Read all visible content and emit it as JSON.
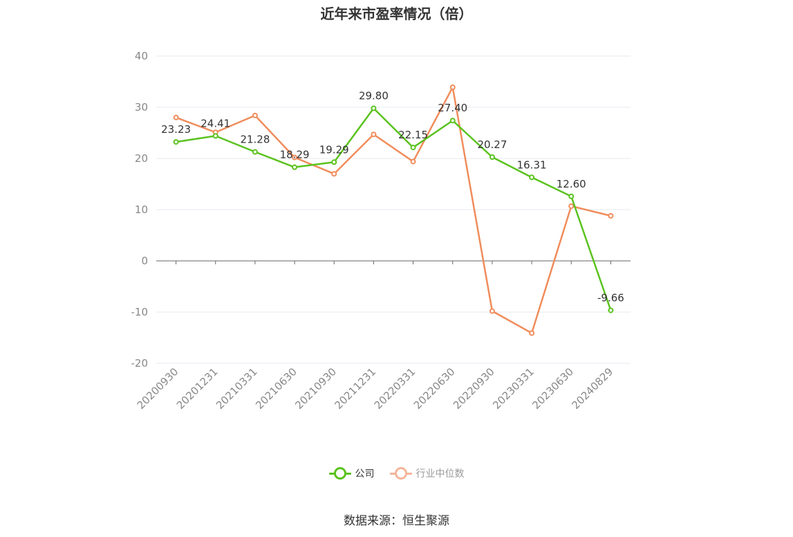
{
  "title": "近年来市盈率情况（倍）",
  "source_note": "数据来源：恒生聚源",
  "legend": [
    {
      "label": "公司",
      "color": "#5ac21e"
    },
    {
      "label": "行业中位数",
      "color": "#f4b59a"
    }
  ],
  "colors": {
    "company": "#5ac21e",
    "industry": "#f08c5b",
    "grid": "#e6e8ef",
    "axis": "#666666",
    "tick_text": "#888888",
    "label_text": "#333333"
  },
  "chart_data": {
    "type": "line",
    "categories": [
      "20200930",
      "20201231",
      "20210331",
      "20210630",
      "20210930",
      "20211231",
      "20220331",
      "20220630",
      "20220930",
      "20230331",
      "20230630",
      "20240829"
    ],
    "ylim": [
      -20,
      40
    ],
    "yticks": [
      40,
      30,
      20,
      10,
      0,
      -10,
      -20
    ],
    "grid": true,
    "legend_position": "bottom",
    "series": [
      {
        "name": "公司",
        "values": [
          23.23,
          24.41,
          21.28,
          18.29,
          19.29,
          29.8,
          22.15,
          27.4,
          20.27,
          16.31,
          12.6,
          -9.66
        ],
        "labels": [
          "23.23",
          "24.41",
          "21.28",
          "18.29",
          "19.29",
          "29.80",
          "22.15",
          "27.40",
          "20.27",
          "16.31",
          "12.60",
          "-9.66"
        ]
      },
      {
        "name": "行业中位数",
        "values": [
          28.0,
          25.1,
          28.4,
          20.2,
          17.0,
          24.7,
          19.4,
          33.9,
          -9.8,
          -14.1,
          10.7,
          8.8
        ]
      }
    ]
  }
}
